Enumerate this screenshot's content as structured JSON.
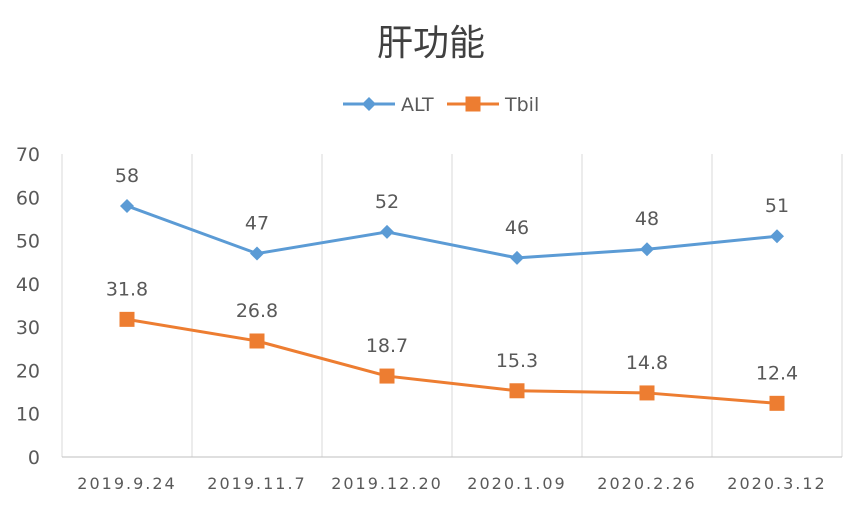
{
  "chart_data": {
    "type": "line",
    "title": "肝功能",
    "xlabel": "",
    "ylabel": "",
    "categories": [
      "2019.9.24",
      "2019.11.7",
      "2019.12.20",
      "2020.1.09",
      "2020.2.26",
      "2020.3.12"
    ],
    "series": [
      {
        "name": "ALT",
        "values": [
          58,
          47,
          52,
          46,
          48,
          51
        ],
        "color": "#5B9BD5",
        "marker": "diamond"
      },
      {
        "name": "Tbil",
        "values": [
          31.8,
          26.8,
          18.7,
          15.3,
          14.8,
          12.4
        ],
        "color": "#ED7D31",
        "marker": "square"
      }
    ],
    "ylim": [
      0,
      70
    ],
    "yticks": [
      0,
      10,
      20,
      30,
      40,
      50,
      60,
      70
    ],
    "grid": "vertical",
    "legend": "top-center",
    "data_labels": true
  }
}
